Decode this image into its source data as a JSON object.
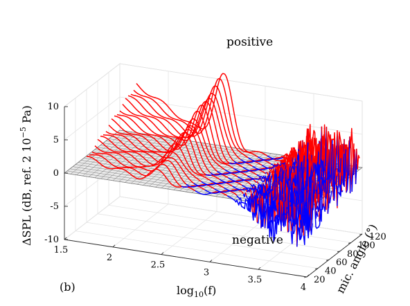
{
  "chart_data": {
    "type": "line",
    "projection": "3d",
    "panel_label": "(b)",
    "xlabel": "log₁₀(f)",
    "xlabel_parts": {
      "main": "log",
      "sub": "10",
      "arg": "(f)"
    },
    "ylabel": "mic. angle (°)",
    "zlabel": "ΔSPL (dB, ref. 2 10⁻⁵ Pa)",
    "zlabel_parts": {
      "main": "ΔSPL (dB, ref. 2 10",
      "sup": "−5",
      "end": " Pa)"
    },
    "xlim": [
      1.5,
      4
    ],
    "ylim": [
      20,
      120
    ],
    "zlim": [
      -10,
      10
    ],
    "x_ticks": [
      1.5,
      2,
      2.5,
      3,
      3.5,
      4
    ],
    "x_tick_labels": [
      "1.5",
      "2",
      "2.5",
      "3",
      "3.5",
      "4"
    ],
    "y_ticks": [
      20,
      40,
      60,
      80,
      100,
      120
    ],
    "y_tick_labels": [
      "20",
      "40",
      "60",
      "80",
      "100",
      "120"
    ],
    "z_ticks": [
      -10,
      -5,
      0,
      5,
      10
    ],
    "z_tick_labels": [
      "-10",
      "-5",
      "0",
      "5",
      "10"
    ],
    "grid": true,
    "zero_plane": {
      "z": 0,
      "color": "#d9d9d9",
      "edge_color": "#7a7a7a"
    },
    "annotations": [
      {
        "text": "positive",
        "x": 3.2,
        "y": 95,
        "z": 11
      },
      {
        "text": "negative",
        "x": 3.55,
        "y": 40,
        "z": -7
      }
    ],
    "colors": {
      "positive": "#ff0000",
      "negative": "#0000ff"
    },
    "angles": [
      25,
      30,
      35,
      40,
      45,
      50,
      55,
      60,
      65,
      70,
      75,
      80,
      85,
      90,
      95,
      100,
      105,
      110,
      115
    ],
    "peak_model": {
      "description": "Per-angle spectrum of SPL difference: broad tonal hump centered near log10(f)=2.4–2.6 rising to ~8–11 dB at high angles, decaying to a noisy band near 0 above log10(f)≈3.3 with positive scatter at high angles and negative scatter at low angles.",
      "x_start": 1.7,
      "x_end": 4.0,
      "peak_x_low_angle": 2.45,
      "peak_x_high_angle": 2.6,
      "peak_dB_low_angle": 2.0,
      "peak_dB_high_angle": 11.0,
      "tail_dB_high_angle": 2.0,
      "tail_dB_low_angle": -2.0
    }
  }
}
